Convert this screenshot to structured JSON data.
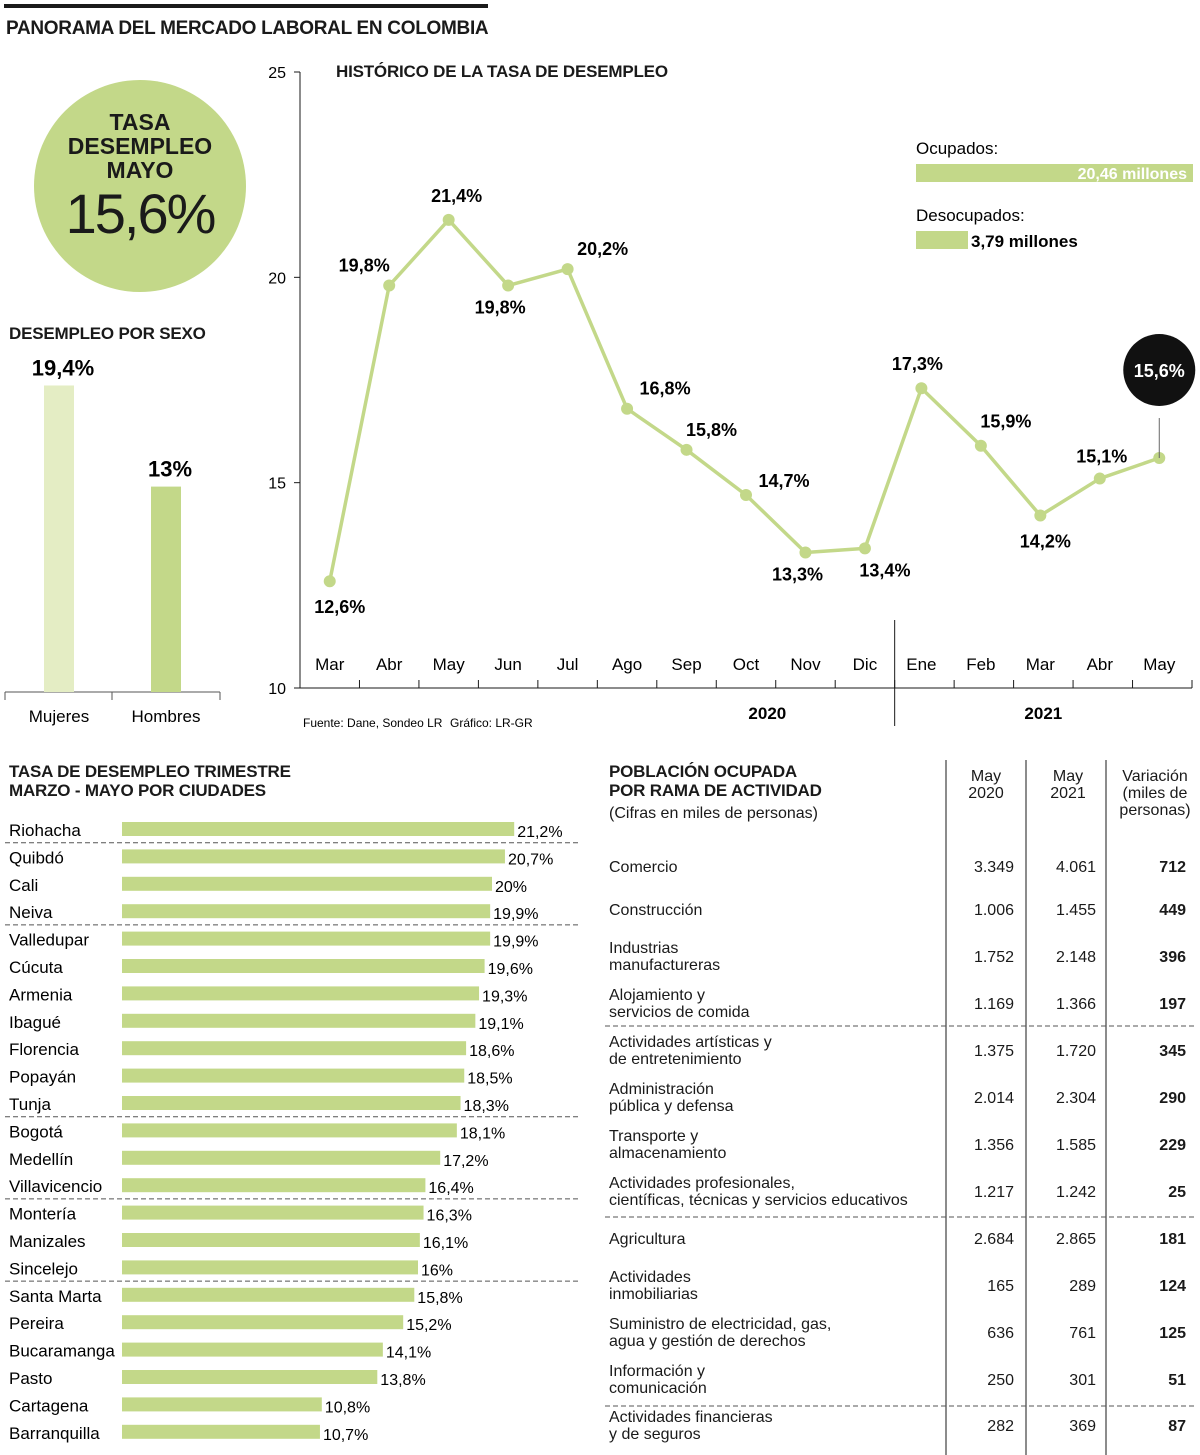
{
  "header": {
    "title": "PANORAMA DEL MERCADO LABORAL EN COLOMBIA"
  },
  "highlight": {
    "label": "TASA\nDESEMPLEO\nMAYO",
    "value": "15,6%"
  },
  "colors": {
    "accent": "#c3d889",
    "accent_light": "#e4edc4",
    "text": "#1a1a1a",
    "highlight_dot": "#111111"
  },
  "chart_data": [
    {
      "type": "line",
      "title": "HISTÓRICO DE LA TASA DE DESEMPLEO",
      "categories": [
        "Mar",
        "Abr",
        "May",
        "Jun",
        "Jul",
        "Ago",
        "Sep",
        "Oct",
        "Nov",
        "Dic",
        "Ene",
        "Feb",
        "Mar",
        "Abr",
        "May"
      ],
      "values": [
        12.6,
        19.8,
        21.4,
        19.8,
        20.2,
        16.8,
        15.8,
        14.7,
        13.3,
        13.4,
        17.3,
        15.9,
        14.2,
        15.1,
        15.6
      ],
      "labels": [
        "12,6%",
        "19,8%",
        "21,4%",
        "19,8%",
        "20,2%",
        "16,8%",
        "15,8%",
        "14,7%",
        "13,3%",
        "13,4%",
        "17,3%",
        "15,9%",
        "14,2%",
        "15,1%",
        "15,6%"
      ],
      "years": [
        "2020",
        "2021"
      ],
      "ylim": [
        10,
        25
      ],
      "yticks": [
        "10",
        "15",
        "20",
        "25"
      ],
      "xlabel": "",
      "ylabel": "",
      "highlight_last": true,
      "source": "Fuente: Dane, Sondeo LR",
      "credit": "Gráfico: LR-GR"
    },
    {
      "type": "bar",
      "title": "DESEMPLEO POR SEXO",
      "categories": [
        "Mujeres",
        "Hombres"
      ],
      "values": [
        19.4,
        13
      ],
      "labels": [
        "19,4%",
        "13%"
      ]
    },
    {
      "type": "bar",
      "orientation": "horizontal",
      "title": "TASA DE DESEMPLEO TRIMESTRE\nMARZO - MAYO POR CIUDADES",
      "categories": [
        "Riohacha",
        "Quibdó",
        "Cali",
        "Neiva",
        "Valledupar",
        "Cúcuta",
        "Armenia",
        "Ibagué",
        "Florencia",
        "Popayán",
        "Tunja",
        "Bogotá",
        "Medellín",
        "Villavicencio",
        "Montería",
        "Manizales",
        "Sincelejo",
        "Santa Marta",
        "Pereira",
        "Bucaramanga",
        "Pasto",
        "Cartagena",
        "Barranquilla"
      ],
      "values": [
        21.2,
        20.7,
        20,
        19.9,
        19.9,
        19.6,
        19.3,
        19.1,
        18.6,
        18.5,
        18.3,
        18.1,
        17.2,
        16.4,
        16.3,
        16.1,
        16,
        15.8,
        15.2,
        14.1,
        13.8,
        10.8,
        10.7
      ],
      "labels": [
        "21,2%",
        "20,7%",
        "20%",
        "19,9%",
        "19,9%",
        "19,6%",
        "19,3%",
        "19,1%",
        "18,6%",
        "18,5%",
        "18,3%",
        "18,1%",
        "17,2%",
        "16,4%",
        "16,3%",
        "16,1%",
        "16%",
        "15,8%",
        "15,2%",
        "14,1%",
        "13,8%",
        "10,8%",
        "10,7%"
      ]
    },
    {
      "type": "bar",
      "orientation": "horizontal",
      "title": "",
      "categories": [
        "Ocupados:",
        "Desocupados:"
      ],
      "values": [
        20.46,
        3.79
      ],
      "labels": [
        "20,46 millones",
        "3,79 millones"
      ],
      "unit": "millones"
    },
    {
      "type": "table",
      "title": "POBLACIÓN OCUPADA\nPOR RAMA DE ACTIVIDAD",
      "subtitle": "(Cifras en miles de personas)",
      "columns": [
        "May\n2020",
        "May\n2021",
        "Variación\n(miles de\npersonas)"
      ],
      "rows": [
        {
          "activity": "Comercio",
          "may2020": "3.349",
          "may2021": "4.061",
          "var": "712"
        },
        {
          "activity": "Construcción",
          "may2020": "1.006",
          "may2021": "1.455",
          "var": "449"
        },
        {
          "activity": "Industrias\nmanufactureras",
          "may2020": "1.752",
          "may2021": "2.148",
          "var": "396"
        },
        {
          "activity": "Alojamiento y\nservicios de comida",
          "may2020": "1.169",
          "may2021": "1.366",
          "var": "197"
        },
        {
          "activity": "Actividades artísticas y\nde entretenimiento",
          "may2020": "1.375",
          "may2021": "1.720",
          "var": "345"
        },
        {
          "activity": "Administración\npública y defensa",
          "may2020": "2.014",
          "may2021": "2.304",
          "var": "290"
        },
        {
          "activity": "Transporte y\nalmacenamiento",
          "may2020": "1.356",
          "may2021": "1.585",
          "var": "229"
        },
        {
          "activity": "Actividades profesionales,\ncientíficas, técnicas y servicios educativos",
          "may2020": "1.217",
          "may2021": "1.242",
          "var": "25"
        },
        {
          "activity": "Agricultura",
          "may2020": "2.684",
          "may2021": "2.865",
          "var": "181"
        },
        {
          "activity": "Actividades\ninmobiliarias",
          "may2020": "165",
          "may2021": "289",
          "var": "124"
        },
        {
          "activity": "Suministro de electricidad, gas,\nagua y gestión de derechos",
          "may2020": "636",
          "may2021": "761",
          "var": "125"
        },
        {
          "activity": "Información y\ncomunicación",
          "may2020": "250",
          "may2021": "301",
          "var": "51"
        },
        {
          "activity": "Actividades financieras\ny de seguros",
          "may2020": "282",
          "may2021": "369",
          "var": "87"
        }
      ]
    }
  ]
}
